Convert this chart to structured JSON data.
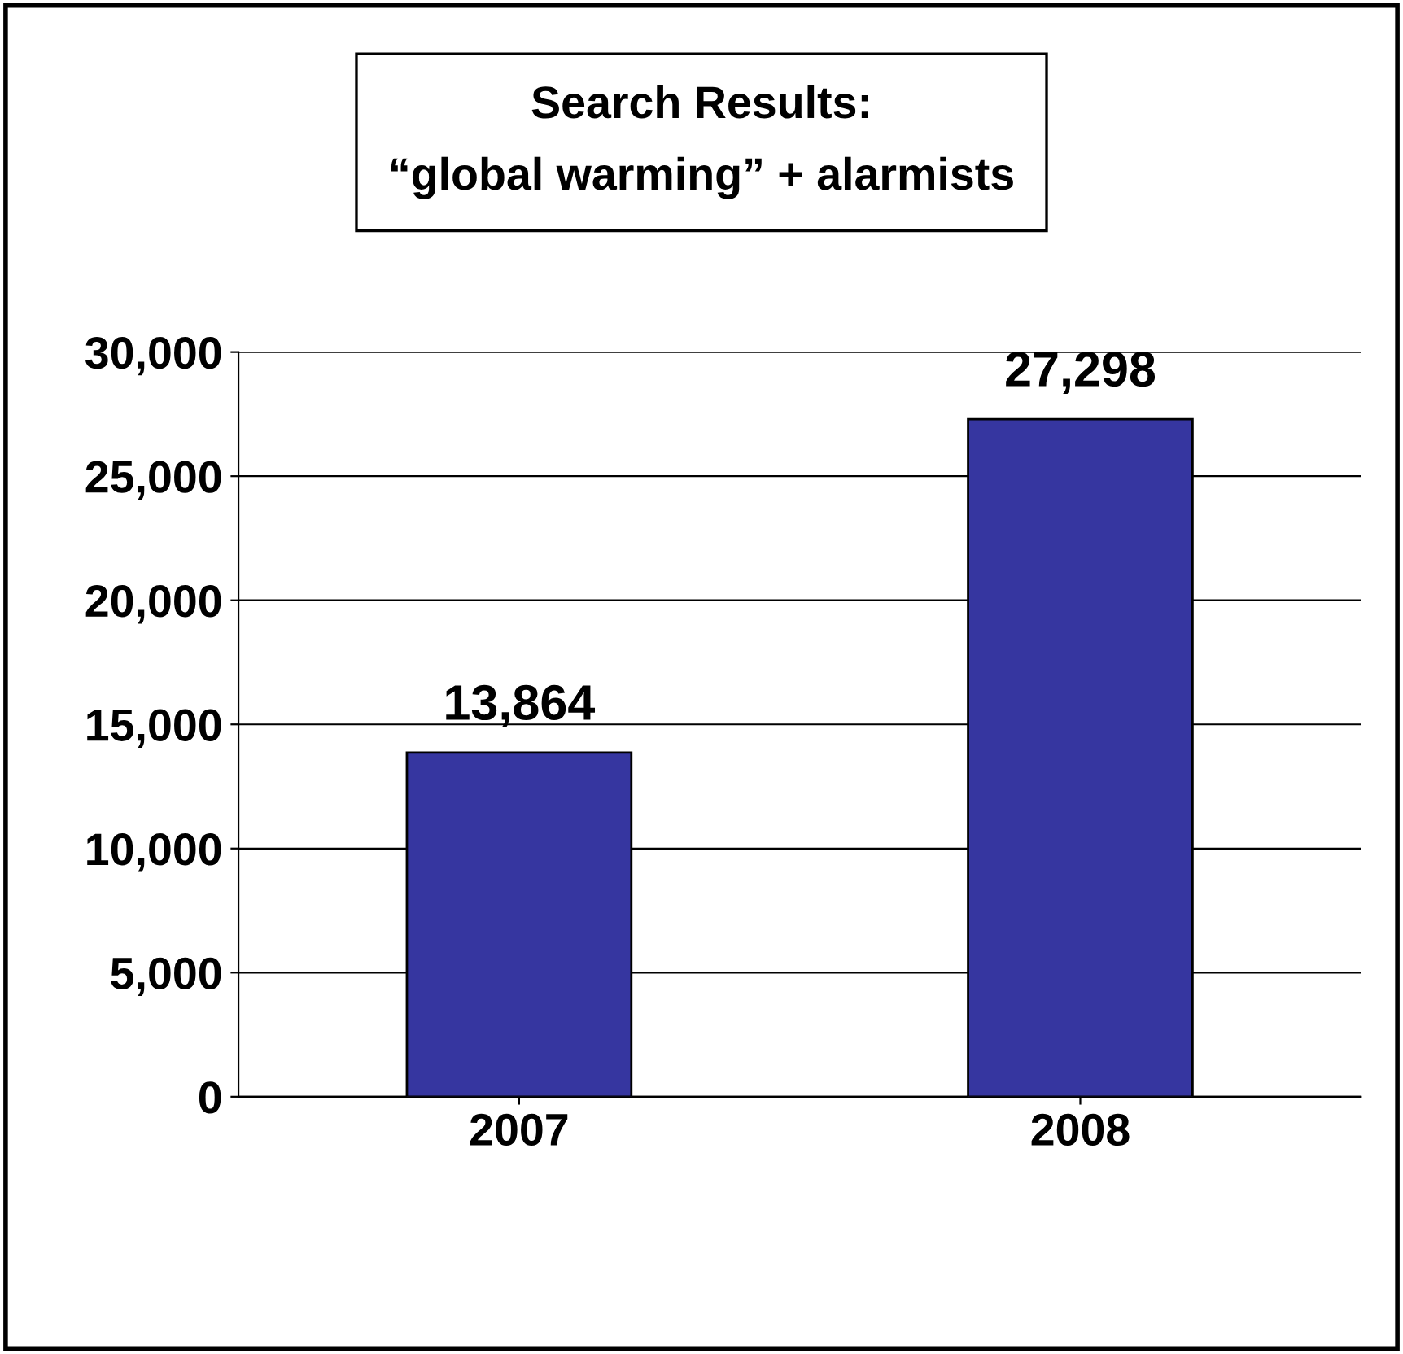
{
  "chart_data": {
    "type": "bar",
    "title": "Search Results:\n“global warming” + alarmists",
    "categories": [
      "2007",
      "2008"
    ],
    "values": [
      13864,
      27298
    ],
    "color": "#3636a0",
    "value_labels": [
      "13,864",
      "27,298"
    ],
    "ylim": [
      0,
      30000
    ],
    "yticks": [
      {
        "value": 0,
        "label": "0"
      },
      {
        "value": 5000,
        "label": "5,000"
      },
      {
        "value": 10000,
        "label": "10,000"
      },
      {
        "value": 15000,
        "label": "15,000"
      },
      {
        "value": 20000,
        "label": "20,000"
      },
      {
        "value": 25000,
        "label": "25,000"
      },
      {
        "value": 30000,
        "label": "30,000"
      }
    ],
    "grid": "y"
  }
}
